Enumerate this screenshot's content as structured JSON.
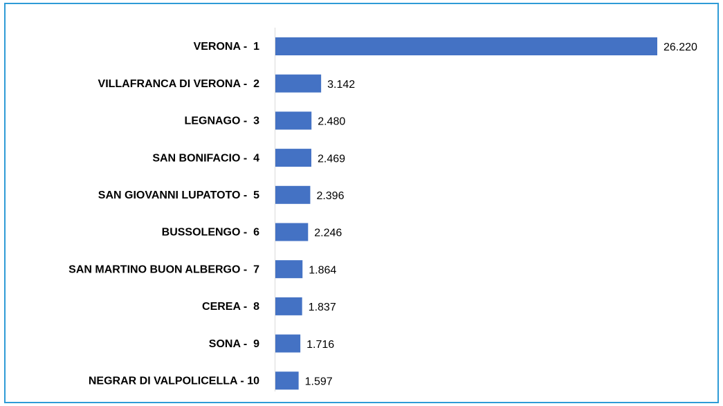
{
  "chart_data": {
    "type": "barh",
    "categories": [
      "VERONA -  1",
      "VILLAFRANCA DI VERONA -  2",
      "LEGNAGO -  3",
      "SAN BONIFACIO -  4",
      "SAN GIOVANNI LUPATOTO -  5",
      "BUSSOLENGO -  6",
      "SAN MARTINO BUON ALBERGO -  7",
      "CEREA -  8",
      "SONA -  9",
      "NEGRAR DI VALPOLICELLA - 10"
    ],
    "values": [
      26220,
      3142,
      2480,
      2469,
      2396,
      2246,
      1864,
      1837,
      1716,
      1597
    ],
    "value_labels": [
      "26.220",
      "3.142",
      "2.480",
      "2.469",
      "2.396",
      "2.246",
      "1.864",
      "1.837",
      "1.716",
      "1.597"
    ],
    "color": "#4472c4"
  }
}
